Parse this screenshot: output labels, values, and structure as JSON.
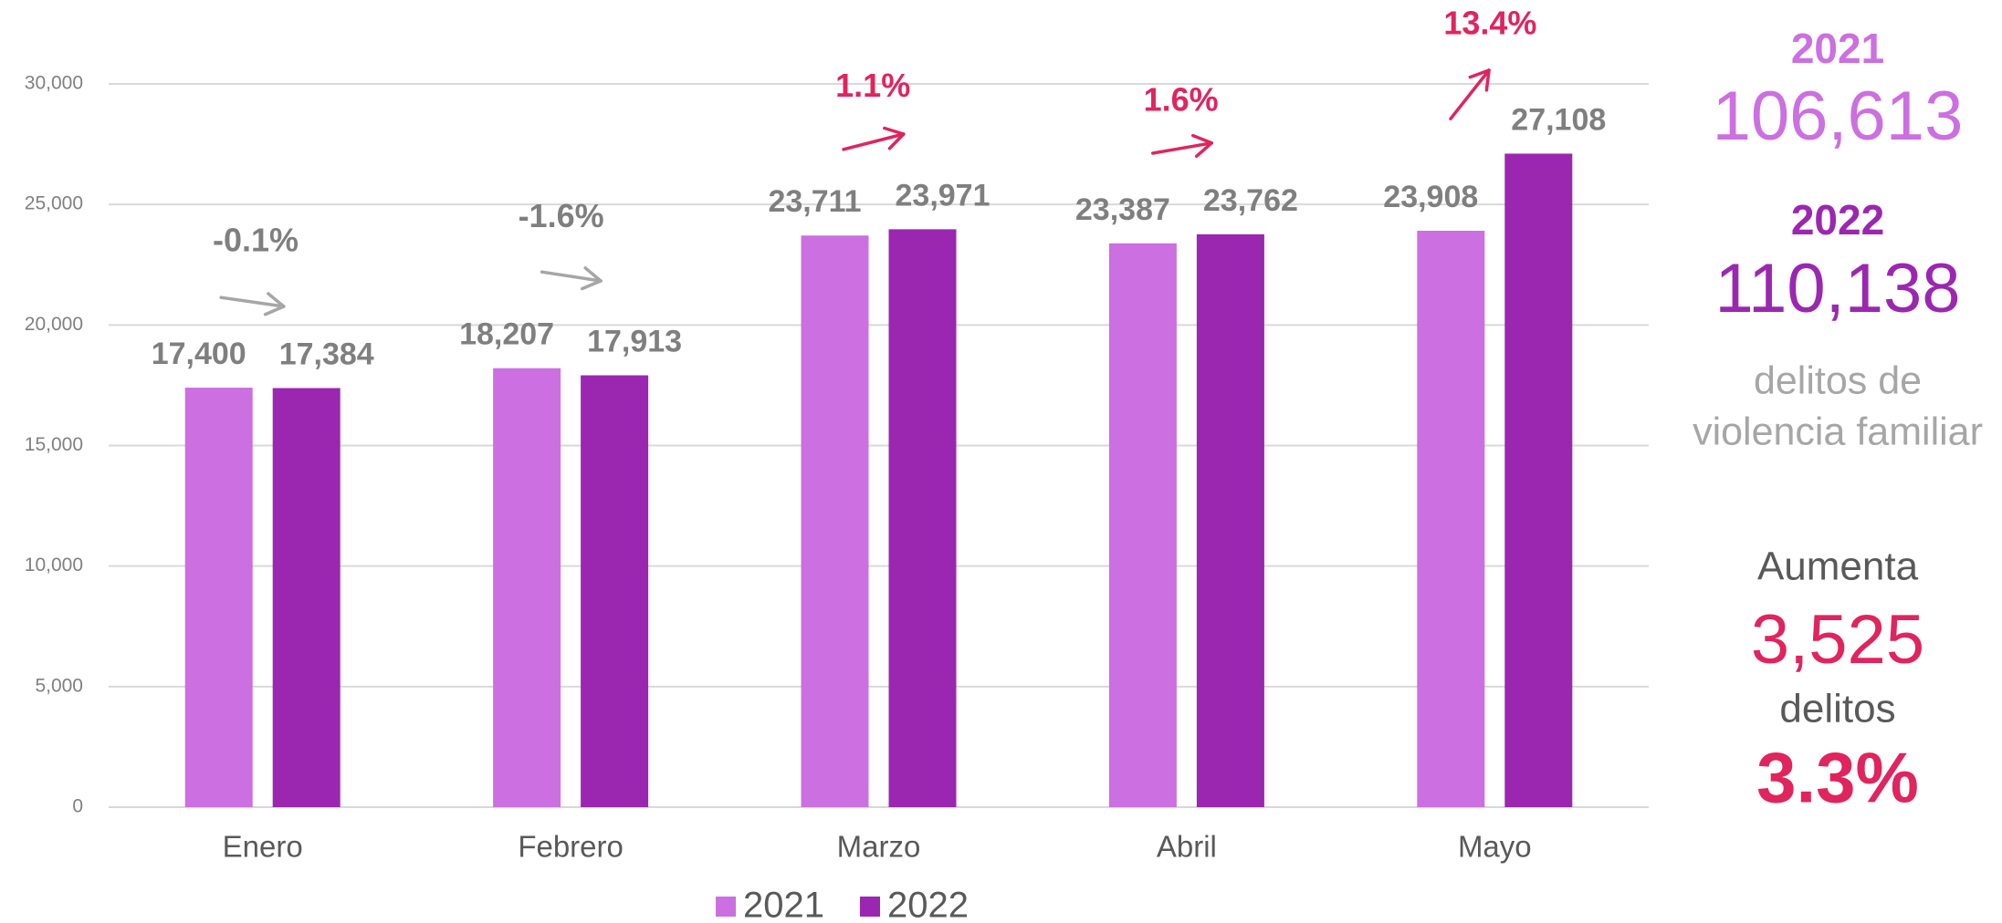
{
  "chart_data": {
    "type": "bar",
    "categories": [
      "Enero",
      "Febrero",
      "Marzo",
      "Abril",
      "Mayo"
    ],
    "series": [
      {
        "name": "2021",
        "color": "#cc6fe0",
        "values": [
          17400,
          18207,
          23711,
          23387,
          23908
        ],
        "value_labels": [
          "17,400",
          "18,207",
          "23,711",
          "23,387",
          "23,908"
        ]
      },
      {
        "name": "2022",
        "color": "#9b27b0",
        "values": [
          17384,
          17913,
          23971,
          23762,
          27108
        ],
        "value_labels": [
          "17,384",
          "17,913",
          "23,971",
          "23,762",
          "27,108"
        ]
      }
    ],
    "annotations": [
      "-0.1%",
      "-1.6%",
      "1.1%",
      "1.6%",
      "13.4%"
    ],
    "annotation_colors": [
      "#7f7f7f",
      "#7f7f7f",
      "#e0245e",
      "#e0245e",
      "#e0245e"
    ],
    "ylim": [
      0,
      30000
    ],
    "yticks": [
      0,
      {
        "value": 5000,
        "label": "5,000"
      },
      {
        "value": 10000,
        "label": "10,000"
      },
      {
        "value": 15000,
        "label": "15,000"
      },
      {
        "value": 20000,
        "label": "20,000"
      },
      {
        "value": 25000,
        "label": "25,000"
      },
      {
        "value": 30000,
        "label": "30,000"
      }
    ],
    "grid": true,
    "legend": "bottom"
  },
  "summary": {
    "year_a": "2021",
    "total_a": "106,613",
    "year_b": "2022",
    "total_b": "110,138",
    "caption_1": "delitos de",
    "caption_2": "violencia familiar",
    "increase_label": "Aumenta",
    "increase": "3,525",
    "increase_unit": "delitos",
    "percent": "3.3%"
  }
}
